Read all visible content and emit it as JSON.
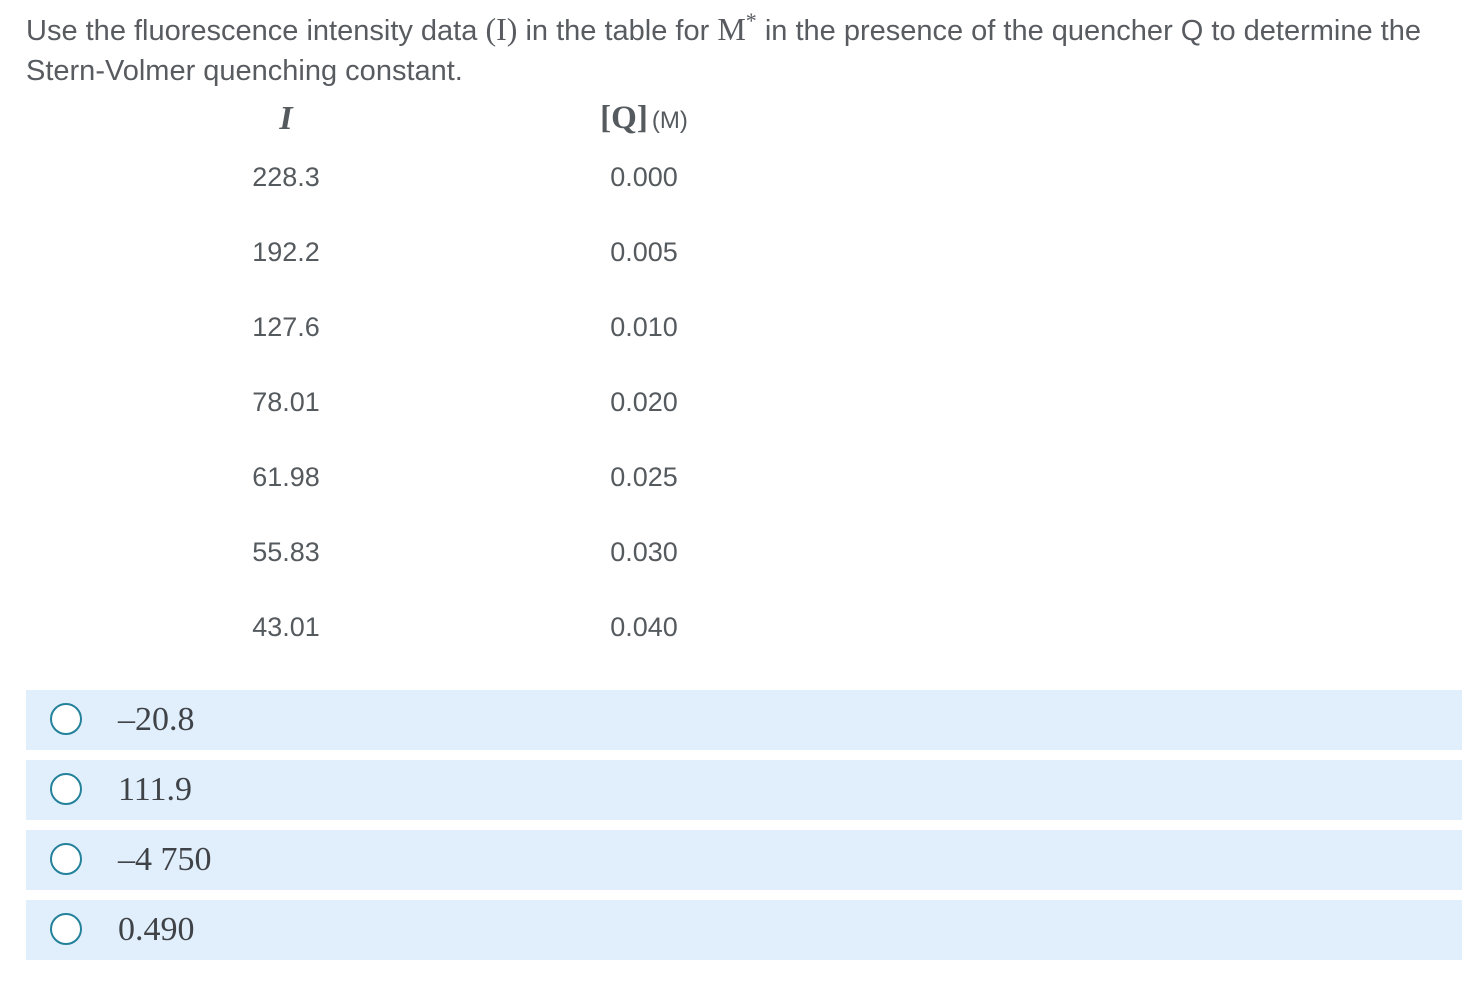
{
  "question": {
    "part1": "Use the fluorescence intensity data ",
    "intensity_symbol": "(I)",
    "part2": " in the table for ",
    "species": "M",
    "species_sup": "*",
    "part3": " in the presence of the quencher Q to determine the Stern-Volmer quenching constant."
  },
  "table": {
    "headers": {
      "intensity": "I",
      "concentration": "[Q]",
      "unit": "(M)"
    },
    "rows": [
      {
        "intensity": "228.3",
        "concentration": "0.000"
      },
      {
        "intensity": "192.2",
        "concentration": "0.005"
      },
      {
        "intensity": "127.6",
        "concentration": "0.010"
      },
      {
        "intensity": "78.01",
        "concentration": "0.020"
      },
      {
        "intensity": "61.98",
        "concentration": "0.025"
      },
      {
        "intensity": "55.83",
        "concentration": "0.030"
      },
      {
        "intensity": "43.01",
        "concentration": "0.040"
      }
    ]
  },
  "options": [
    {
      "label": "–20.8",
      "selected": false
    },
    {
      "label": "111.9",
      "selected": false
    },
    {
      "label": "–4 750",
      "selected": false
    },
    {
      "label": "0.490",
      "selected": false
    }
  ],
  "colors": {
    "option_background": "#e1effd",
    "radio_border": "#23819a",
    "text": "#555a5e"
  }
}
